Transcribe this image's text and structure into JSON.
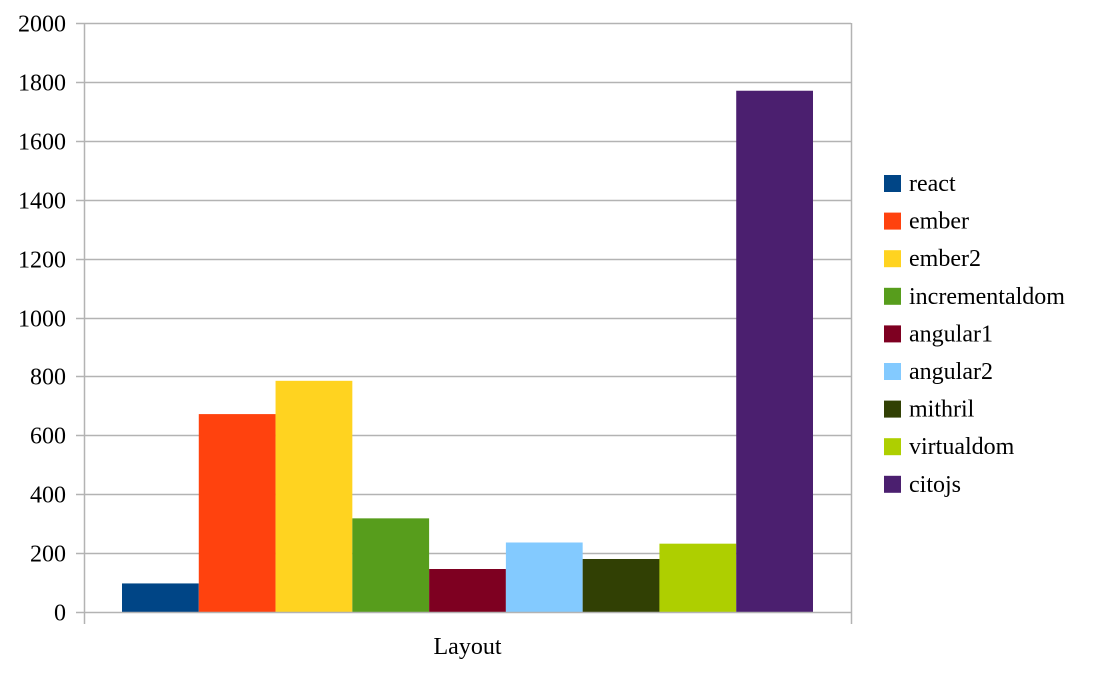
{
  "chart_data": {
    "type": "bar",
    "categories": [
      "Layout"
    ],
    "series": [
      {
        "name": "react",
        "color": "#004586",
        "values": [
          97
        ]
      },
      {
        "name": "ember",
        "color": "#ff420e",
        "values": [
          672
        ]
      },
      {
        "name": "ember2",
        "color": "#ffd320",
        "values": [
          785
        ]
      },
      {
        "name": "incrementaldom",
        "color": "#579d1c",
        "values": [
          318
        ]
      },
      {
        "name": "angular1",
        "color": "#7e0021",
        "values": [
          146
        ]
      },
      {
        "name": "angular2",
        "color": "#83caff",
        "values": [
          236
        ]
      },
      {
        "name": "mithril",
        "color": "#314004",
        "values": [
          180
        ]
      },
      {
        "name": "virtualdom",
        "color": "#aecf00",
        "values": [
          232
        ]
      },
      {
        "name": "citojs",
        "color": "#4b1f6f",
        "values": [
          1770
        ]
      }
    ],
    "ylim": [
      0,
      2000
    ],
    "yticks": [
      0,
      200,
      400,
      600,
      800,
      1000,
      1200,
      1400,
      1600,
      1800,
      2000
    ],
    "grid": true,
    "legend_position": "right"
  }
}
